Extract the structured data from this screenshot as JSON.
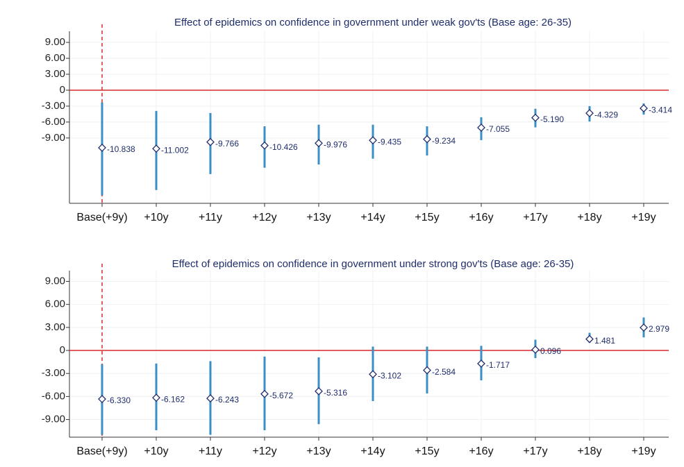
{
  "chart_data": [
    {
      "type": "errorbar",
      "title": "Effect of epidemics on confidence in government under weak gov'ts (Base age: 26-35)",
      "categories": [
        "Base(+9y)",
        "+10y",
        "+11y",
        "+12y",
        "+13y",
        "+14y",
        "+15y",
        "+16y",
        "+17y",
        "+18y",
        "+19y"
      ],
      "values": [
        -10.838,
        -11.002,
        -9.766,
        -10.426,
        -9.976,
        -9.435,
        -9.234,
        -7.055,
        -5.19,
        -4.329,
        -3.414
      ],
      "value_labels": [
        "-10.838",
        "-11.002",
        "-9.766",
        "-10.426",
        "-9.976",
        "-9.435",
        "-9.234",
        "-7.055",
        "-5.190",
        "-4.329",
        "-3.414"
      ],
      "ci_high": [
        -2.3,
        -3.9,
        -4.3,
        -6.8,
        -6.5,
        -6.5,
        -6.8,
        -5.1,
        -3.5,
        -3.0,
        -2.5
      ],
      "ci_low": [
        -19.8,
        -18.8,
        -15.8,
        -14.6,
        -14.0,
        -12.9,
        -12.3,
        -9.4,
        -7.0,
        -5.9,
        -4.6
      ],
      "color": "#3a8fc4",
      "ylim": [
        -21.3,
        11.1
      ],
      "yticks": [
        {
          "value": 9,
          "label": "9.00"
        },
        {
          "value": 6,
          "label": "6.00"
        },
        {
          "value": 3,
          "label": "3.00"
        },
        0,
        {
          "value": -3,
          "label": "-3.00"
        },
        {
          "value": -6,
          "label": "-6.00"
        },
        {
          "value": -9,
          "label": "-9.00"
        }
      ],
      "grid": true
    },
    {
      "type": "errorbar",
      "title": "Effect of epidemics on confidence in government under strong gov'ts (Base age: 26-35)",
      "categories": [
        "Base(+9y)",
        "+10y",
        "+11y",
        "+12y",
        "+13y",
        "+14y",
        "+15y",
        "+16y",
        "+17y",
        "+18y",
        "+19y"
      ],
      "values": [
        -6.33,
        -6.162,
        -6.243,
        -5.672,
        -5.316,
        -3.102,
        -2.584,
        -1.717,
        0.096,
        1.481,
        2.979
      ],
      "value_labels": [
        "-6.330",
        "-6.162",
        "-6.243",
        "-5.672",
        "-5.316",
        "-3.102",
        "-2.584",
        "-1.717",
        "0.096",
        "1.481",
        "2.979"
      ],
      "ci_high": [
        -1.8,
        -1.7,
        -1.4,
        -0.8,
        -0.9,
        0.5,
        0.5,
        0.6,
        1.4,
        2.3,
        4.3
      ],
      "ci_low": [
        -11.0,
        -10.4,
        -11.0,
        -10.4,
        -9.6,
        -6.6,
        -5.6,
        -3.9,
        -1.0,
        1.0,
        1.7
      ],
      "color": "#3a8fc4",
      "ylim": [
        -11.3,
        10.4
      ],
      "yticks": [
        {
          "value": 9,
          "label": "9.00"
        },
        {
          "value": 6,
          "label": "6.00"
        },
        {
          "value": 3,
          "label": "3.00"
        },
        0,
        {
          "value": -3,
          "label": "-3.00"
        },
        {
          "value": -6,
          "label": "-6.00"
        },
        {
          "value": -9,
          "label": "-9.00"
        }
      ],
      "grid": true
    }
  ]
}
